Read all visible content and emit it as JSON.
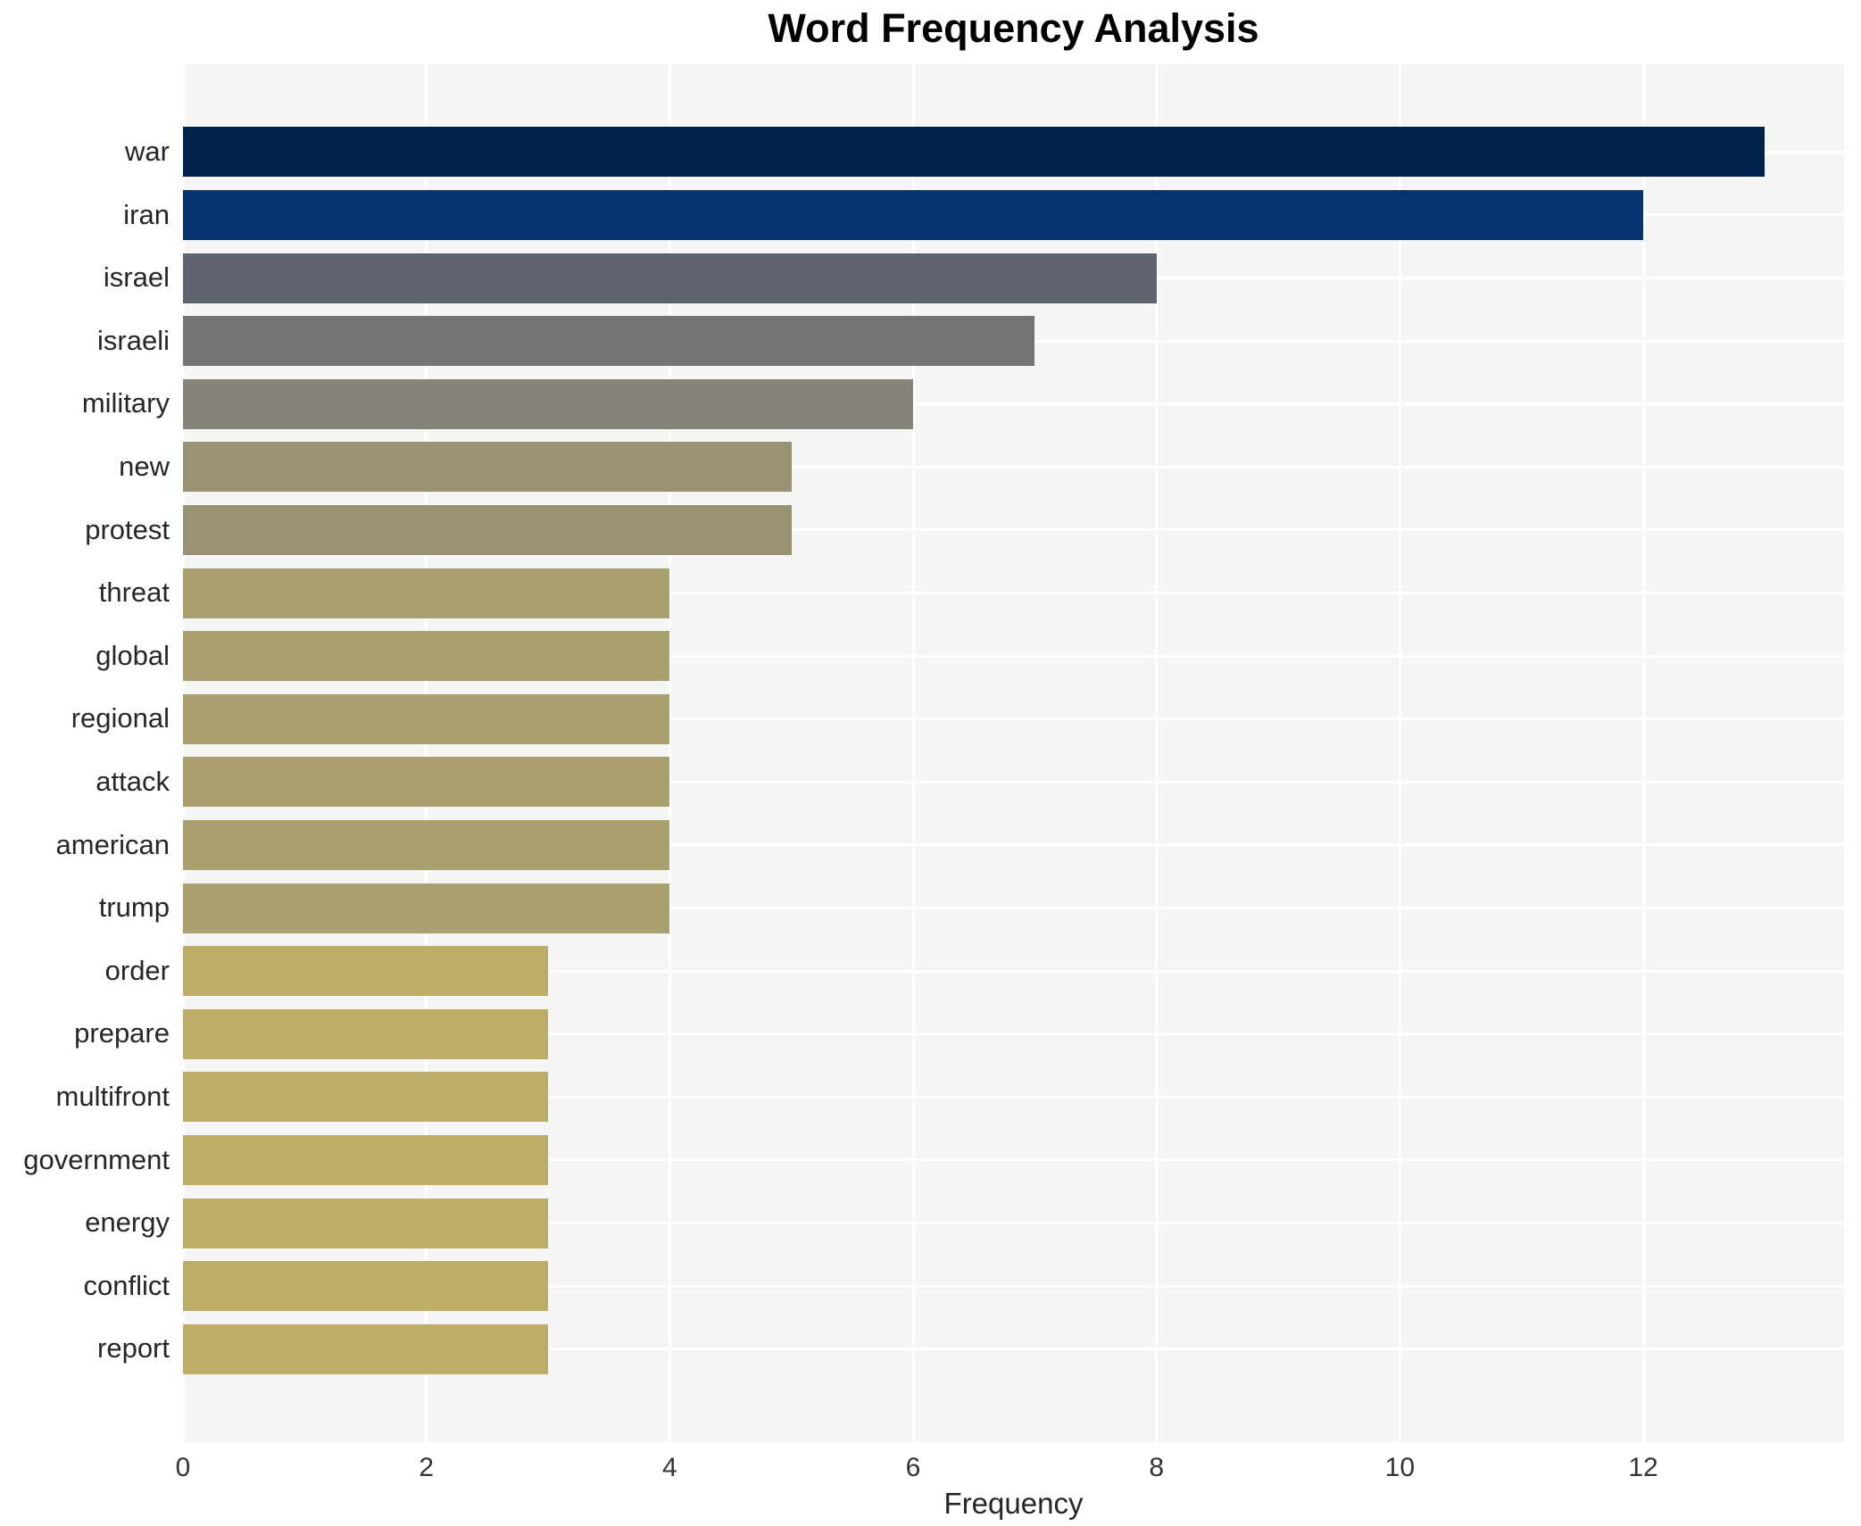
{
  "title": "Word Frequency Analysis",
  "chart_data": {
    "type": "bar",
    "orientation": "horizontal",
    "title": "Word Frequency Analysis",
    "xlabel": "Frequency",
    "ylabel": "",
    "categories": [
      "war",
      "iran",
      "israel",
      "israeli",
      "military",
      "new",
      "protest",
      "threat",
      "global",
      "regional",
      "attack",
      "american",
      "trump",
      "order",
      "prepare",
      "multifront",
      "government",
      "energy",
      "conflict",
      "report"
    ],
    "values": [
      13,
      12,
      8,
      7,
      6,
      5,
      5,
      4,
      4,
      4,
      4,
      4,
      4,
      3,
      3,
      3,
      3,
      3,
      3,
      3
    ],
    "bar_colors": [
      "#01224c",
      "#04336e",
      "#5f6370",
      "#757473",
      "#85837a",
      "#999273",
      "#999273",
      "#aa9f6f",
      "#aa9f6f",
      "#aa9f6f",
      "#aa9f6f",
      "#aa9f6f",
      "#aa9f6f",
      "#beac69",
      "#beac69",
      "#beac69",
      "#beac69",
      "#beac69",
      "#beac69",
      "#beac69"
    ],
    "x_ticks": [
      0,
      2,
      4,
      6,
      8,
      10,
      12
    ],
    "xlim": [
      0,
      13.65
    ],
    "grid": "white vertical gridlines at x ticks and white horizontal gridlines at bar centers on light gray panel",
    "legend": "none",
    "value_labels": "none",
    "plot_background": "#f5f5f3",
    "figure_background": "#ffffff"
  }
}
